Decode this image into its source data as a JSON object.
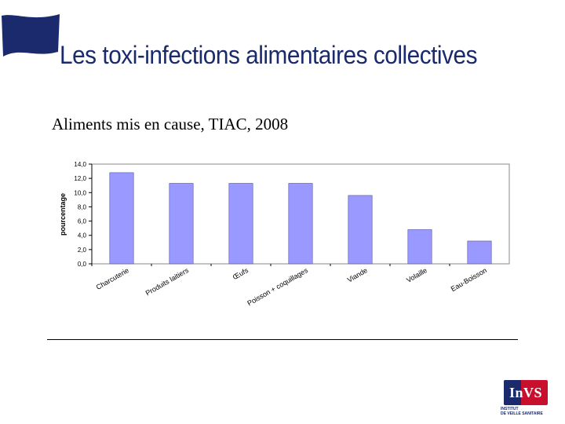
{
  "slide": {
    "title": "Les toxi-infections alimentaires collectives",
    "subtitle": "Aliments mis en cause, TIAC, 2008"
  },
  "logo": {
    "name": "InVS",
    "caption": "INSTITUT\nDE VEILLE SANITAIRE"
  },
  "colors": {
    "title": "#1a2a6c",
    "flag": "#1a2a6c",
    "bar": "#9999ff",
    "bar_stroke": "#5555aa",
    "plot_bg": "#ffffff"
  },
  "chart_data": {
    "type": "bar",
    "categories": [
      "Charcuterie",
      "Produits laitiers",
      "Œufs",
      "Poisson + coquillages",
      "Viande",
      "Volaille",
      "Eau-Boisson"
    ],
    "values": [
      12.8,
      11.3,
      11.3,
      11.3,
      9.6,
      4.8,
      3.2
    ],
    "title": "",
    "xlabel": "",
    "ylabel": "pourcentage",
    "ylim": [
      0,
      14
    ],
    "yticks": [
      "0,0",
      "2,0",
      "4,0",
      "6,0",
      "8,0",
      "10,0",
      "12,0",
      "14,0"
    ],
    "grid": false,
    "legend": "none"
  }
}
